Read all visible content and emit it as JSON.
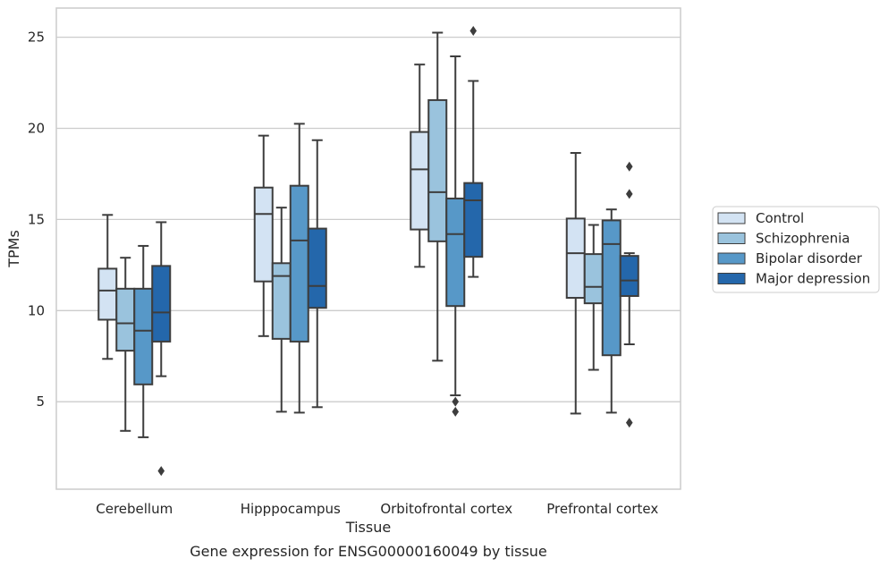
{
  "chart_data": {
    "type": "box",
    "title": "",
    "caption": "Gene expression for ENSG00000160049 by tissue",
    "xlabel": "Tissue",
    "ylabel": "TPMs",
    "ylim": [
      0.2,
      26.6
    ],
    "yticks": [
      5,
      10,
      15,
      20,
      25
    ],
    "grid": "horizontal",
    "legend_position": "right",
    "categories": [
      "Cerebellum",
      "Hipppocampus",
      "Orbitofrontal cortex",
      "Prefrontal cortex"
    ],
    "series": [
      {
        "name": "Control",
        "color": "#d3e3f3",
        "boxes": [
          {
            "whislo": 7.35,
            "q1": 9.5,
            "med": 11.1,
            "q3": 12.3,
            "whishi": 15.25,
            "fliers": []
          },
          {
            "whislo": 8.6,
            "q1": 11.6,
            "med": 15.3,
            "q3": 16.75,
            "whishi": 19.6,
            "fliers": []
          },
          {
            "whislo": 12.4,
            "q1": 14.45,
            "med": 17.75,
            "q3": 19.8,
            "whishi": 23.5,
            "fliers": []
          },
          {
            "whislo": 4.35,
            "q1": 10.7,
            "med": 13.15,
            "q3": 15.05,
            "whishi": 18.65,
            "fliers": []
          }
        ]
      },
      {
        "name": "Schizophrenia",
        "color": "#9ac3dd",
        "boxes": [
          {
            "whislo": 3.4,
            "q1": 7.8,
            "med": 9.3,
            "q3": 11.2,
            "whishi": 12.9,
            "fliers": []
          },
          {
            "whislo": 4.45,
            "q1": 8.45,
            "med": 11.9,
            "q3": 12.6,
            "whishi": 15.65,
            "fliers": []
          },
          {
            "whislo": 7.25,
            "q1": 13.8,
            "med": 16.5,
            "q3": 21.55,
            "whishi": 25.25,
            "fliers": []
          },
          {
            "whislo": 6.75,
            "q1": 10.4,
            "med": 11.3,
            "q3": 13.1,
            "whishi": 14.7,
            "fliers": []
          }
        ]
      },
      {
        "name": "Bipolar disorder",
        "color": "#5798c8",
        "boxes": [
          {
            "whislo": 3.05,
            "q1": 5.95,
            "med": 8.9,
            "q3": 11.2,
            "whishi": 13.55,
            "fliers": []
          },
          {
            "whislo": 4.4,
            "q1": 8.3,
            "med": 13.85,
            "q3": 16.85,
            "whishi": 20.25,
            "fliers": []
          },
          {
            "whislo": 5.35,
            "q1": 10.25,
            "med": 14.2,
            "q3": 16.15,
            "whishi": 23.95,
            "fliers": [
              5.0,
              4.45
            ]
          },
          {
            "whislo": 4.4,
            "q1": 7.55,
            "med": 13.65,
            "q3": 14.95,
            "whishi": 15.55,
            "fliers": []
          }
        ]
      },
      {
        "name": "Major depression",
        "color": "#2467ab",
        "boxes": [
          {
            "whislo": 6.4,
            "q1": 8.3,
            "med": 9.9,
            "q3": 12.45,
            "whishi": 14.85,
            "fliers": [
              1.2
            ]
          },
          {
            "whislo": 4.7,
            "q1": 10.15,
            "med": 11.35,
            "q3": 14.5,
            "whishi": 19.35,
            "fliers": []
          },
          {
            "whislo": 11.85,
            "q1": 12.95,
            "med": 16.05,
            "q3": 17.0,
            "whishi": 22.6,
            "fliers": [
              25.35
            ]
          },
          {
            "whislo": 8.15,
            "q1": 10.8,
            "med": 11.65,
            "q3": 13.0,
            "whishi": 13.15,
            "fliers": [
              17.9,
              16.4,
              3.85
            ]
          }
        ]
      }
    ]
  }
}
